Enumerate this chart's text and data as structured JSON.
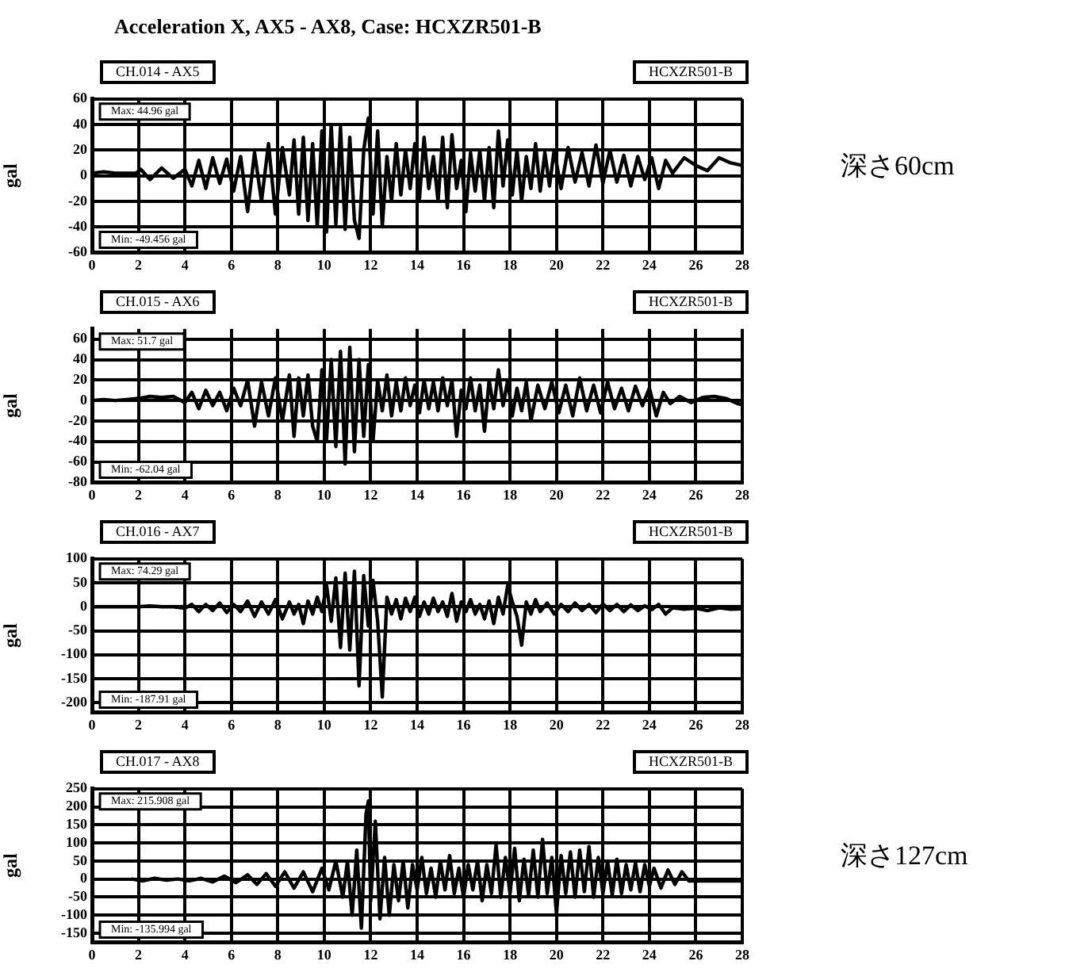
{
  "chart_data": [
    {
      "type": "line",
      "title": "Acceleration X, AX5 - AX8, Case: HCXZR501-B",
      "ylabel": "gal",
      "xlim": [
        0,
        28
      ],
      "xticks": [
        0,
        2,
        4,
        6,
        8,
        10,
        12,
        14,
        16,
        18,
        20,
        22,
        24,
        26,
        28
      ],
      "ylim": [
        -60,
        60
      ],
      "yticks": [
        -60,
        -40,
        -20,
        0,
        20,
        40,
        60
      ],
      "grid": true,
      "color": "#000000",
      "annotations": [
        "CH.014 - AX5",
        "HCXZR501-B",
        "Max: 44.96 gal",
        "Min: -49.456 gal",
        "深さ60cm"
      ],
      "x": [
        0,
        0.5,
        1,
        1.5,
        1.9,
        2.1,
        2.5,
        3,
        3.5,
        4,
        4.3,
        4.6,
        4.9,
        5.2,
        5.5,
        5.8,
        6.1,
        6.4,
        6.7,
        7,
        7.3,
        7.6,
        7.9,
        8.2,
        8.5,
        8.7,
        8.9,
        9.1,
        9.3,
        9.5,
        9.7,
        9.9,
        10.1,
        10.3,
        10.5,
        10.7,
        10.9,
        11.1,
        11.3,
        11.5,
        11.7,
        11.9,
        12.1,
        12.3,
        12.5,
        12.7,
        12.9,
        13.1,
        13.3,
        13.5,
        13.7,
        13.9,
        14.1,
        14.3,
        14.5,
        14.7,
        14.9,
        15.1,
        15.3,
        15.5,
        15.7,
        15.9,
        16.1,
        16.3,
        16.5,
        16.7,
        16.9,
        17.1,
        17.3,
        17.5,
        17.7,
        17.9,
        18.1,
        18.3,
        18.5,
        18.7,
        18.9,
        19.1,
        19.3,
        19.5,
        19.7,
        19.9,
        20.2,
        20.5,
        20.8,
        21.1,
        21.4,
        21.7,
        22,
        22.3,
        22.6,
        22.9,
        23.2,
        23.5,
        23.8,
        24.1,
        24.4,
        24.7,
        25,
        25.5,
        26,
        26.5,
        27,
        27.5,
        28
      ],
      "values": [
        2,
        3,
        2,
        2,
        2,
        5,
        -3,
        6,
        -2,
        5,
        -8,
        12,
        -10,
        14,
        -6,
        13,
        -12,
        15,
        -28,
        18,
        -20,
        25,
        -30,
        22,
        -15,
        28,
        -30,
        30,
        -35,
        25,
        -40,
        35,
        -44,
        40,
        -38,
        38,
        -42,
        30,
        -35,
        -49,
        20,
        45,
        -30,
        35,
        -40,
        15,
        -20,
        25,
        -15,
        20,
        -10,
        25,
        -18,
        30,
        -10,
        15,
        -20,
        30,
        -25,
        32,
        -10,
        12,
        -28,
        18,
        -12,
        20,
        -20,
        22,
        -25,
        35,
        -8,
        28,
        -15,
        20,
        -20,
        15,
        -10,
        25,
        -12,
        18,
        -8,
        20,
        -10,
        22,
        -5,
        18,
        -8,
        24,
        -6,
        20,
        -5,
        16,
        -8,
        15,
        -3,
        14,
        -10,
        12,
        2,
        14,
        8,
        4,
        14,
        10,
        8
      ]
    },
    {
      "type": "line",
      "ylabel": "gal",
      "xlim": [
        0,
        28
      ],
      "xticks": [
        0,
        2,
        4,
        6,
        8,
        10,
        12,
        14,
        16,
        18,
        20,
        22,
        24,
        26,
        28
      ],
      "ylim": [
        -80,
        70
      ],
      "yticks": [
        -80,
        -60,
        -40,
        -20,
        0,
        20,
        40,
        60
      ],
      "grid": true,
      "color": "#000000",
      "annotations": [
        "CH.015 - AX6",
        "HCXZR501-B",
        "Max: 51.7 gal",
        "Min: -62.04 gal"
      ],
      "x": [
        0,
        0.5,
        1,
        1.5,
        2,
        2.5,
        3,
        3.5,
        4,
        4.3,
        4.6,
        4.9,
        5.2,
        5.5,
        5.8,
        6.1,
        6.4,
        6.7,
        7,
        7.3,
        7.6,
        7.9,
        8.2,
        8.5,
        8.7,
        8.9,
        9.1,
        9.3,
        9.5,
        9.7,
        9.9,
        10.1,
        10.3,
        10.5,
        10.7,
        10.9,
        11.1,
        11.3,
        11.5,
        11.7,
        11.9,
        12.1,
        12.3,
        12.5,
        12.7,
        12.9,
        13.1,
        13.3,
        13.5,
        13.7,
        13.9,
        14.1,
        14.3,
        14.5,
        14.7,
        14.9,
        15.1,
        15.3,
        15.5,
        15.7,
        15.9,
        16.1,
        16.3,
        16.5,
        16.7,
        16.9,
        17.1,
        17.3,
        17.5,
        17.7,
        17.9,
        18.1,
        18.3,
        18.5,
        18.7,
        18.9,
        19.2,
        19.5,
        19.8,
        20.1,
        20.4,
        20.7,
        21,
        21.3,
        21.6,
        21.9,
        22.2,
        22.5,
        22.8,
        23.1,
        23.4,
        23.7,
        24,
        24.3,
        24.6,
        24.9,
        25.3,
        25.8,
        26.3,
        26.8,
        27.3,
        27.8,
        28
      ],
      "values": [
        0,
        1,
        0,
        1,
        2,
        4,
        3,
        4,
        -2,
        8,
        -8,
        10,
        -5,
        8,
        -10,
        12,
        -5,
        20,
        -25,
        18,
        -15,
        22,
        -20,
        25,
        -35,
        22,
        -15,
        25,
        -25,
        -40,
        30,
        -38,
        40,
        -45,
        48,
        -62,
        52,
        -50,
        40,
        -35,
        35,
        -40,
        20,
        -10,
        25,
        -15,
        18,
        -10,
        22,
        -5,
        15,
        -12,
        20,
        -8,
        18,
        -10,
        22,
        -5,
        20,
        -35,
        10,
        -8,
        22,
        -10,
        15,
        -30,
        20,
        -8,
        30,
        -5,
        20,
        -15,
        12,
        -10,
        18,
        -20,
        15,
        -8,
        18,
        -12,
        15,
        -15,
        22,
        -10,
        15,
        -12,
        18,
        -8,
        12,
        -10,
        14,
        -5,
        12,
        -15,
        8,
        -3,
        4,
        -2,
        3,
        4,
        2,
        -3,
        -4
      ]
    },
    {
      "type": "line",
      "ylabel": "gal",
      "xlim": [
        0,
        28
      ],
      "xticks": [
        0,
        2,
        4,
        6,
        8,
        10,
        12,
        14,
        16,
        18,
        20,
        22,
        24,
        26,
        28
      ],
      "ylim": [
        -220,
        100
      ],
      "yticks": [
        -200,
        -150,
        -100,
        -50,
        0,
        50,
        100
      ],
      "grid": true,
      "color": "#000000",
      "annotations": [
        "CH.016 - AX7",
        "HCXZR501-B",
        "Max: 74.29 gal",
        "Min: -187.91 gal"
      ],
      "x": [
        0,
        1,
        2,
        2.5,
        3,
        3.5,
        4,
        4.3,
        4.6,
        4.9,
        5.2,
        5.5,
        5.8,
        6.1,
        6.4,
        6.7,
        7,
        7.3,
        7.6,
        7.9,
        8.2,
        8.5,
        8.7,
        8.9,
        9.1,
        9.3,
        9.5,
        9.7,
        9.9,
        10.1,
        10.3,
        10.5,
        10.7,
        10.9,
        11.1,
        11.3,
        11.5,
        11.7,
        11.9,
        12.1,
        12.3,
        12.5,
        12.7,
        12.9,
        13.1,
        13.3,
        13.5,
        13.7,
        13.9,
        14.1,
        14.3,
        14.5,
        14.7,
        14.9,
        15.1,
        15.3,
        15.5,
        15.7,
        15.9,
        16.1,
        16.3,
        16.5,
        16.7,
        16.9,
        17.1,
        17.3,
        17.5,
        17.7,
        17.9,
        18.1,
        18.3,
        18.5,
        18.7,
        18.9,
        19.1,
        19.3,
        19.6,
        19.9,
        20.2,
        20.5,
        20.8,
        21.1,
        21.4,
        21.7,
        22,
        22.3,
        22.6,
        22.9,
        23.2,
        23.5,
        23.8,
        24.1,
        24.4,
        24.7,
        25,
        25.5,
        26,
        26.5,
        27,
        27.5,
        28
      ],
      "values": [
        0,
        0,
        0,
        2,
        0,
        0,
        -3,
        5,
        -10,
        5,
        -8,
        8,
        -12,
        5,
        -10,
        12,
        -20,
        10,
        -15,
        15,
        -25,
        10,
        -15,
        5,
        -35,
        12,
        -15,
        20,
        -10,
        45,
        -30,
        60,
        -85,
        70,
        -90,
        74,
        -165,
        65,
        -40,
        55,
        -30,
        -188,
        20,
        -15,
        15,
        -25,
        18,
        -10,
        20,
        -20,
        10,
        -15,
        18,
        -10,
        10,
        -20,
        28,
        -30,
        10,
        -10,
        15,
        -15,
        5,
        -25,
        12,
        -35,
        20,
        -15,
        45,
        10,
        -20,
        -80,
        10,
        -15,
        15,
        -10,
        8,
        -15,
        5,
        -10,
        8,
        -8,
        5,
        -12,
        6,
        -8,
        5,
        -10,
        4,
        -8,
        2,
        -6,
        5,
        -15,
        -2,
        -5,
        -3,
        -8,
        -2,
        -5,
        -4
      ]
    },
    {
      "type": "line",
      "ylabel": "gal",
      "xlim": [
        0,
        28
      ],
      "xticks": [
        0,
        2,
        4,
        6,
        8,
        10,
        12,
        14,
        16,
        18,
        20,
        22,
        24,
        26,
        28
      ],
      "ylim": [
        -175,
        250
      ],
      "yticks": [
        -150,
        -100,
        -50,
        0,
        50,
        100,
        150,
        200,
        250
      ],
      "grid": true,
      "color": "#000000",
      "annotations": [
        "CH.017 - AX8",
        "HCXZR501-B",
        "Max: 215.908 gal",
        "Min: -135.994 gal",
        "深さ127cm"
      ],
      "x": [
        1.7,
        2.2,
        2.7,
        3.2,
        3.7,
        4.2,
        4.7,
        5.2,
        5.7,
        6.2,
        6.7,
        7.1,
        7.5,
        7.9,
        8.3,
        8.7,
        9.1,
        9.5,
        9.9,
        10.2,
        10.5,
        10.8,
        11,
        11.2,
        11.4,
        11.6,
        11.8,
        11.9,
        12,
        12.2,
        12.4,
        12.6,
        12.8,
        13,
        13.2,
        13.4,
        13.6,
        13.8,
        14,
        14.2,
        14.4,
        14.6,
        14.8,
        15,
        15.2,
        15.4,
        15.6,
        15.8,
        16,
        16.2,
        16.4,
        16.6,
        16.8,
        17,
        17.2,
        17.4,
        17.6,
        17.8,
        18,
        18.2,
        18.4,
        18.6,
        18.8,
        19,
        19.2,
        19.4,
        19.6,
        19.8,
        20,
        20.2,
        20.4,
        20.6,
        20.8,
        21,
        21.2,
        21.4,
        21.6,
        21.8,
        22,
        22.2,
        22.4,
        22.6,
        22.8,
        23,
        23.2,
        23.4,
        23.6,
        23.8,
        24,
        24.2,
        24.5,
        24.8,
        25.1,
        25.4,
        25.7,
        26,
        26.5,
        27,
        27.5,
        28
      ],
      "values": [
        0,
        -5,
        2,
        -3,
        0,
        -5,
        2,
        -8,
        8,
        -10,
        12,
        -15,
        15,
        -20,
        20,
        -25,
        20,
        -35,
        30,
        -30,
        50,
        -50,
        50,
        -100,
        80,
        -136,
        180,
        216,
        -60,
        160,
        -110,
        60,
        -100,
        40,
        -60,
        50,
        -80,
        40,
        -30,
        60,
        -40,
        30,
        -50,
        50,
        -30,
        65,
        -40,
        30,
        -50,
        40,
        -30,
        50,
        -60,
        40,
        -40,
        95,
        -50,
        60,
        -40,
        85,
        -60,
        55,
        -45,
        80,
        -50,
        110,
        -40,
        60,
        -95,
        65,
        -40,
        75,
        -50,
        80,
        -35,
        90,
        -50,
        60,
        -40,
        50,
        -45,
        55,
        -40,
        40,
        -30,
        45,
        -35,
        40,
        -20,
        30,
        -25,
        25,
        -15,
        20,
        -5,
        -5,
        -5,
        -5,
        -5,
        -5
      ]
    }
  ]
}
